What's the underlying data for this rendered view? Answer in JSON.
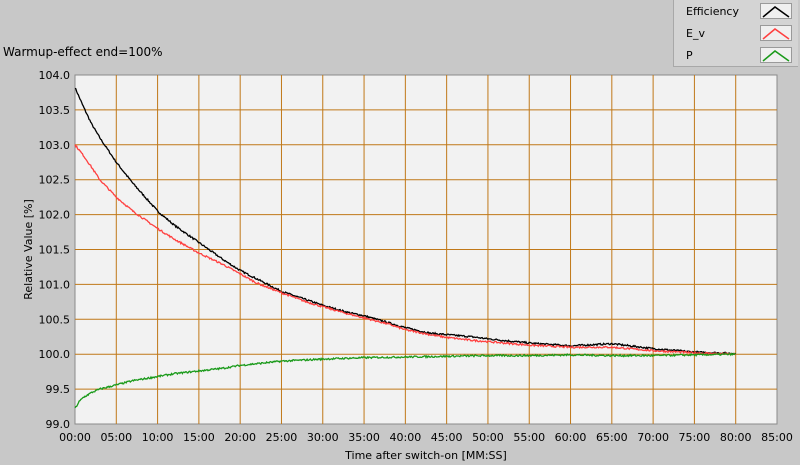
{
  "title": "Warmup-effect end=100%",
  "legend": [
    {
      "label": "Efficiency",
      "color": "#000000"
    },
    {
      "label": "E_v",
      "color": "#ff4040"
    },
    {
      "label": "P",
      "color": "#1a9a1a"
    }
  ],
  "chart_data": {
    "type": "line",
    "xlabel": "Time after switch-on [MM:SS]",
    "ylabel": "Relative Value [%]",
    "xlim": [
      0,
      85
    ],
    "ylim": [
      99.0,
      104.0
    ],
    "x_ticks": [
      "00:00",
      "05:00",
      "10:00",
      "15:00",
      "20:00",
      "25:00",
      "30:00",
      "35:00",
      "40:00",
      "45:00",
      "50:00",
      "55:00",
      "60:00",
      "65:00",
      "70:00",
      "75:00",
      "80:00",
      "85:00"
    ],
    "y_ticks": [
      "104.0",
      "103.5",
      "103.0",
      "102.5",
      "102.0",
      "101.5",
      "101.0",
      "100.5",
      "100.0",
      "99.5",
      "99.0"
    ],
    "grid": true,
    "grid_color": "#c07818",
    "plot_background": "#f2f2f2",
    "legend_position": "top-right",
    "series": [
      {
        "name": "Efficiency",
        "color": "#000000",
        "x": [
          0,
          1,
          2,
          3,
          5,
          7,
          10,
          12,
          15,
          18,
          20,
          22,
          25,
          28,
          30,
          33,
          35,
          38,
          40,
          43,
          45,
          48,
          50,
          55,
          60,
          65,
          70,
          75,
          80
        ],
        "y": [
          103.82,
          103.55,
          103.3,
          103.1,
          102.75,
          102.45,
          102.05,
          101.85,
          101.6,
          101.35,
          101.2,
          101.08,
          100.9,
          100.78,
          100.7,
          100.6,
          100.55,
          100.45,
          100.38,
          100.3,
          100.28,
          100.25,
          100.22,
          100.16,
          100.12,
          100.15,
          100.08,
          100.03,
          100.01
        ]
      },
      {
        "name": "E_v",
        "color": "#ff4040",
        "x": [
          0,
          1,
          2,
          3,
          5,
          7,
          10,
          12,
          15,
          18,
          20,
          22,
          25,
          28,
          30,
          33,
          35,
          38,
          40,
          43,
          45,
          48,
          50,
          55,
          60,
          65,
          70,
          75,
          80
        ],
        "y": [
          103.0,
          102.85,
          102.68,
          102.5,
          102.25,
          102.05,
          101.8,
          101.65,
          101.45,
          101.28,
          101.15,
          101.02,
          100.88,
          100.75,
          100.68,
          100.58,
          100.52,
          100.43,
          100.35,
          100.28,
          100.24,
          100.2,
          100.18,
          100.13,
          100.1,
          100.1,
          100.05,
          100.02,
          100.0
        ]
      },
      {
        "name": "P",
        "color": "#1a9a1a",
        "x": [
          0,
          0.5,
          1,
          2,
          3,
          5,
          7,
          10,
          12,
          15,
          18,
          20,
          25,
          30,
          35,
          40,
          45,
          50,
          55,
          60,
          65,
          70,
          75,
          80
        ],
        "y": [
          99.22,
          99.32,
          99.38,
          99.45,
          99.5,
          99.56,
          99.62,
          99.68,
          99.72,
          99.76,
          99.8,
          99.84,
          99.9,
          99.93,
          99.95,
          99.96,
          99.97,
          99.98,
          99.98,
          99.99,
          99.98,
          99.98,
          99.99,
          100.0
        ]
      }
    ]
  }
}
